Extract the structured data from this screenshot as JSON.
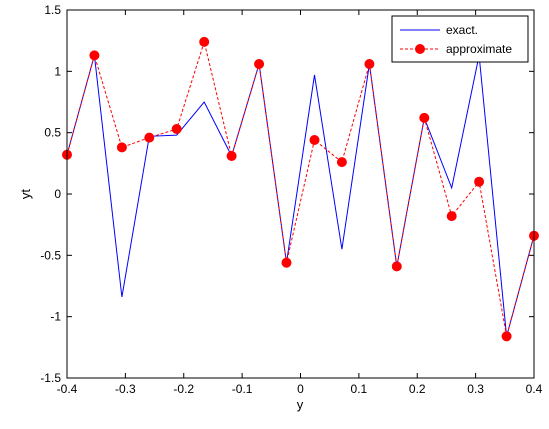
{
  "chart_data": {
    "type": "line",
    "xlabel": "y",
    "ylabel": "yt",
    "xlim": [
      -0.4,
      0.4
    ],
    "ylim": [
      -1.5,
      1.5
    ],
    "xticks": [
      "-0.4",
      "-0.3",
      "-0.2",
      "-0.1",
      "0",
      "0.1",
      "0.2",
      "0.3",
      "0.4"
    ],
    "yticks": [
      "-1.5",
      "-1",
      "-0.5",
      "0",
      "0.5",
      "1",
      "1.5"
    ],
    "grid": false,
    "legend_position": "top-right",
    "x": [
      -0.4,
      -0.353,
      -0.306,
      -0.259,
      -0.212,
      -0.165,
      -0.118,
      -0.071,
      -0.024,
      0.024,
      0.071,
      0.118,
      0.165,
      0.212,
      0.259,
      0.306,
      0.353,
      0.4
    ],
    "series": [
      {
        "name": "exact.",
        "color": "#0000ff",
        "style": "solid",
        "marker": "none",
        "values": [
          0.32,
          1.13,
          -0.84,
          0.47,
          0.48,
          0.75,
          0.31,
          1.06,
          -0.56,
          0.97,
          -0.45,
          1.06,
          -0.59,
          0.62,
          0.05,
          1.13,
          -1.16,
          -0.34
        ]
      },
      {
        "name": "approximate",
        "color": "#ff0000",
        "style": "dashed",
        "marker": "circle",
        "values": [
          0.32,
          1.13,
          0.38,
          0.46,
          0.53,
          1.24,
          0.31,
          1.06,
          -0.56,
          0.44,
          0.26,
          1.06,
          -0.59,
          0.62,
          -0.18,
          0.1,
          -1.16,
          -0.34
        ]
      }
    ]
  }
}
